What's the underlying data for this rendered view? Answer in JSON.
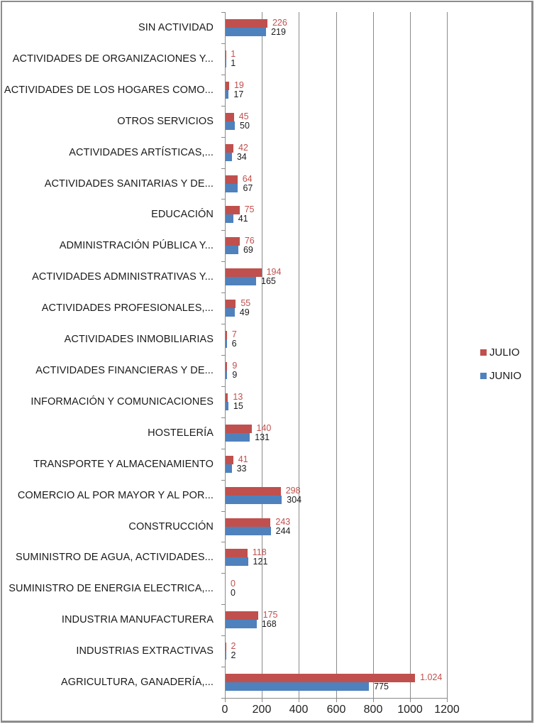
{
  "chart_data": {
    "type": "bar",
    "orientation": "horizontal",
    "title": "",
    "xlabel": "",
    "ylabel": "",
    "xlim": [
      0,
      1200
    ],
    "x_ticks": [
      "0",
      "200",
      "400",
      "600",
      "800",
      "1000",
      "1200"
    ],
    "grid": true,
    "legend_position": "right",
    "categories": [
      "SIN ACTIVIDAD",
      "ACTIVIDADES DE ORGANIZACIONES Y...",
      "ACTIVIDADES DE LOS HOGARES COMO...",
      "OTROS SERVICIOS",
      "ACTIVIDADES ARTÍSTICAS,...",
      "ACTIVIDADES SANITARIAS Y DE...",
      "EDUCACIÓN",
      "ADMINISTRACIÓN PÚBLICA Y...",
      "ACTIVIDADES ADMINISTRATIVAS Y...",
      "ACTIVIDADES PROFESIONALES,...",
      "ACTIVIDADES INMOBILIARIAS",
      "ACTIVIDADES FINANCIERAS Y DE...",
      "INFORMACIÓN Y COMUNICACIONES",
      "HOSTELERÍA",
      "TRANSPORTE Y ALMACENAMIENTO",
      "COMERCIO AL POR MAYOR Y AL POR...",
      "CONSTRUCCIÓN",
      "SUMINISTRO DE AGUA, ACTIVIDADES...",
      "SUMINISTRO DE ENERGIA ELECTRICA,...",
      "INDUSTRIA MANUFACTURERA",
      "INDUSTRIAS EXTRACTIVAS",
      "AGRICULTURA, GANADERÍA,..."
    ],
    "series": [
      {
        "name": "JULIO",
        "color": "#c0504d",
        "values": [
          226,
          1,
          19,
          45,
          42,
          64,
          75,
          76,
          194,
          55,
          7,
          9,
          13,
          140,
          41,
          298,
          243,
          118,
          0,
          175,
          2,
          1024
        ],
        "labels": [
          "226",
          "1",
          "19",
          "45",
          "42",
          "64",
          "75",
          "76",
          "194",
          "55",
          "7",
          "9",
          "13",
          "140",
          "41",
          "298",
          "243",
          "118",
          "0",
          "175",
          "2",
          "1.024"
        ]
      },
      {
        "name": "JUNIO",
        "color": "#4f81bd",
        "values": [
          219,
          1,
          17,
          50,
          34,
          67,
          41,
          69,
          165,
          49,
          6,
          9,
          15,
          131,
          33,
          304,
          244,
          121,
          0,
          168,
          2,
          775
        ],
        "labels": [
          "219",
          "1",
          "17",
          "50",
          "34",
          "67",
          "41",
          "69",
          "165",
          "49",
          "6",
          "9",
          "15",
          "131",
          "33",
          "304",
          "244",
          "121",
          "0",
          "168",
          "2",
          "775"
        ]
      }
    ]
  },
  "legend": {
    "items": [
      {
        "label": "JULIO",
        "color": "#c0504d"
      },
      {
        "label": "JUNIO",
        "color": "#4f81bd"
      }
    ]
  }
}
